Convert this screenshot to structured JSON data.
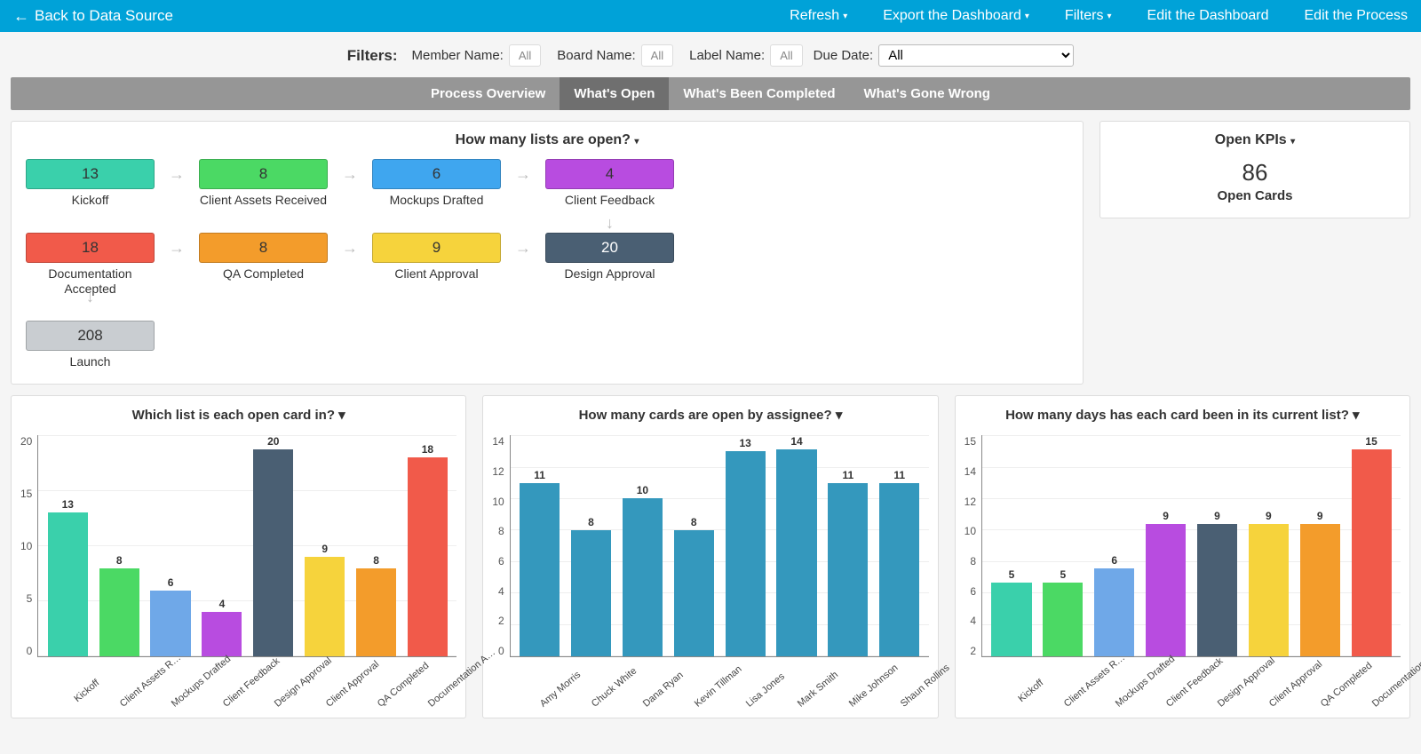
{
  "topbar": {
    "back_label": "Back to Data Source",
    "links": [
      "Refresh",
      "Export the Dashboard",
      "Filters",
      "Edit the Dashboard",
      "Edit the Process"
    ],
    "links_caret": [
      true,
      true,
      true,
      false,
      false
    ],
    "bg_color": "#00a2d8"
  },
  "filters": {
    "title": "Filters:",
    "items": [
      {
        "label": "Member Name:",
        "value": "All"
      },
      {
        "label": "Board Name:",
        "value": "All"
      },
      {
        "label": "Label Name:",
        "value": "All"
      }
    ],
    "due_date_label": "Due Date:",
    "due_date_value": "All"
  },
  "tabs": {
    "items": [
      "Process Overview",
      "What's Open",
      "What's Been Completed",
      "What's Gone Wrong"
    ],
    "active_index": 1,
    "bg_color": "#969696",
    "active_bg": "#6f6f6f"
  },
  "flow_panel": {
    "title": "How many lists are open?",
    "row1": [
      {
        "value": 13,
        "label": "Kickoff",
        "color": "#3ad0ab"
      },
      {
        "value": 8,
        "label": "Client Assets Received",
        "color": "#4bd964"
      },
      {
        "value": 6,
        "label": "Mockups Drafted",
        "color": "#3fa6ef"
      },
      {
        "value": 4,
        "label": "Client Feedback",
        "color": "#b84ce0"
      }
    ],
    "row2": [
      {
        "value": 18,
        "label": "Documentation Accepted",
        "color": "#f15a4a"
      },
      {
        "value": 8,
        "label": "QA Completed",
        "color": "#f39c2b"
      },
      {
        "value": 9,
        "label": "Client Approval",
        "color": "#f6d33c"
      },
      {
        "value": 20,
        "label": "Design Approval",
        "color": "#4a5f73"
      }
    ],
    "row3": [
      {
        "value": 208,
        "label": "Launch",
        "color": "#c9cdd1"
      }
    ]
  },
  "kpi_panel": {
    "title": "Open KPIs",
    "value": "86",
    "label": "Open Cards"
  },
  "chart1": {
    "title": "Which list is each open card in?",
    "type": "bar",
    "ylim": [
      0,
      20
    ],
    "ytick_step": 5,
    "yticks": [
      "20",
      "15",
      "10",
      "5",
      "0"
    ],
    "categories": [
      "Kickoff",
      "Client Assets R…",
      "Mockups Drafted",
      "Client Feedback",
      "Design Approval",
      "Client Approval",
      "QA Completed",
      "Documentation A…"
    ],
    "values": [
      13,
      8,
      6,
      4,
      20,
      9,
      8,
      18
    ],
    "colors": [
      "#3ad0ab",
      "#4bd964",
      "#6fa8e8",
      "#b84ce0",
      "#4a5f73",
      "#f6d33c",
      "#f39c2b",
      "#f15a4a"
    ],
    "label_fontsize": 11
  },
  "chart2": {
    "title": "How many cards are open by assignee?",
    "type": "bar",
    "ylim": [
      0,
      14
    ],
    "ytick_step": 2,
    "yticks": [
      "14",
      "12",
      "10",
      "8",
      "6",
      "4",
      "2",
      "0"
    ],
    "categories": [
      "Amy Morris",
      "Chuck White",
      "Dana Ryan",
      "Kevin Tillman",
      "Lisa Jones",
      "Mark Smith",
      "Mike Johnson",
      "Shaun Rollins"
    ],
    "values": [
      11,
      8,
      10,
      8,
      13,
      14,
      11,
      11
    ],
    "colors": [
      "#3498bd",
      "#3498bd",
      "#3498bd",
      "#3498bd",
      "#3498bd",
      "#3498bd",
      "#3498bd",
      "#3498bd"
    ],
    "label_fontsize": 11
  },
  "chart3": {
    "title": "How many days has each card been in its current list?",
    "type": "bar",
    "ylim": [
      0,
      15
    ],
    "ytick_step_labels": [
      "15",
      "14",
      "12",
      "10",
      "8",
      "6",
      "4",
      "2"
    ],
    "yticks": [
      "15",
      "14",
      "12",
      "10",
      "8",
      "6",
      "4",
      "2"
    ],
    "categories": [
      "Kickoff",
      "Client Assets R…",
      "Mockups Drafted",
      "Client Feedback",
      "Design Approval",
      "Client Approval",
      "QA Completed",
      "Documentation A…"
    ],
    "values": [
      5,
      5,
      6,
      9,
      9,
      9,
      9,
      15
    ],
    "colors": [
      "#3ad0ab",
      "#4bd964",
      "#6fa8e8",
      "#b84ce0",
      "#4a5f73",
      "#f6d33c",
      "#f39c2b",
      "#f15a4a"
    ],
    "label_fontsize": 11
  }
}
